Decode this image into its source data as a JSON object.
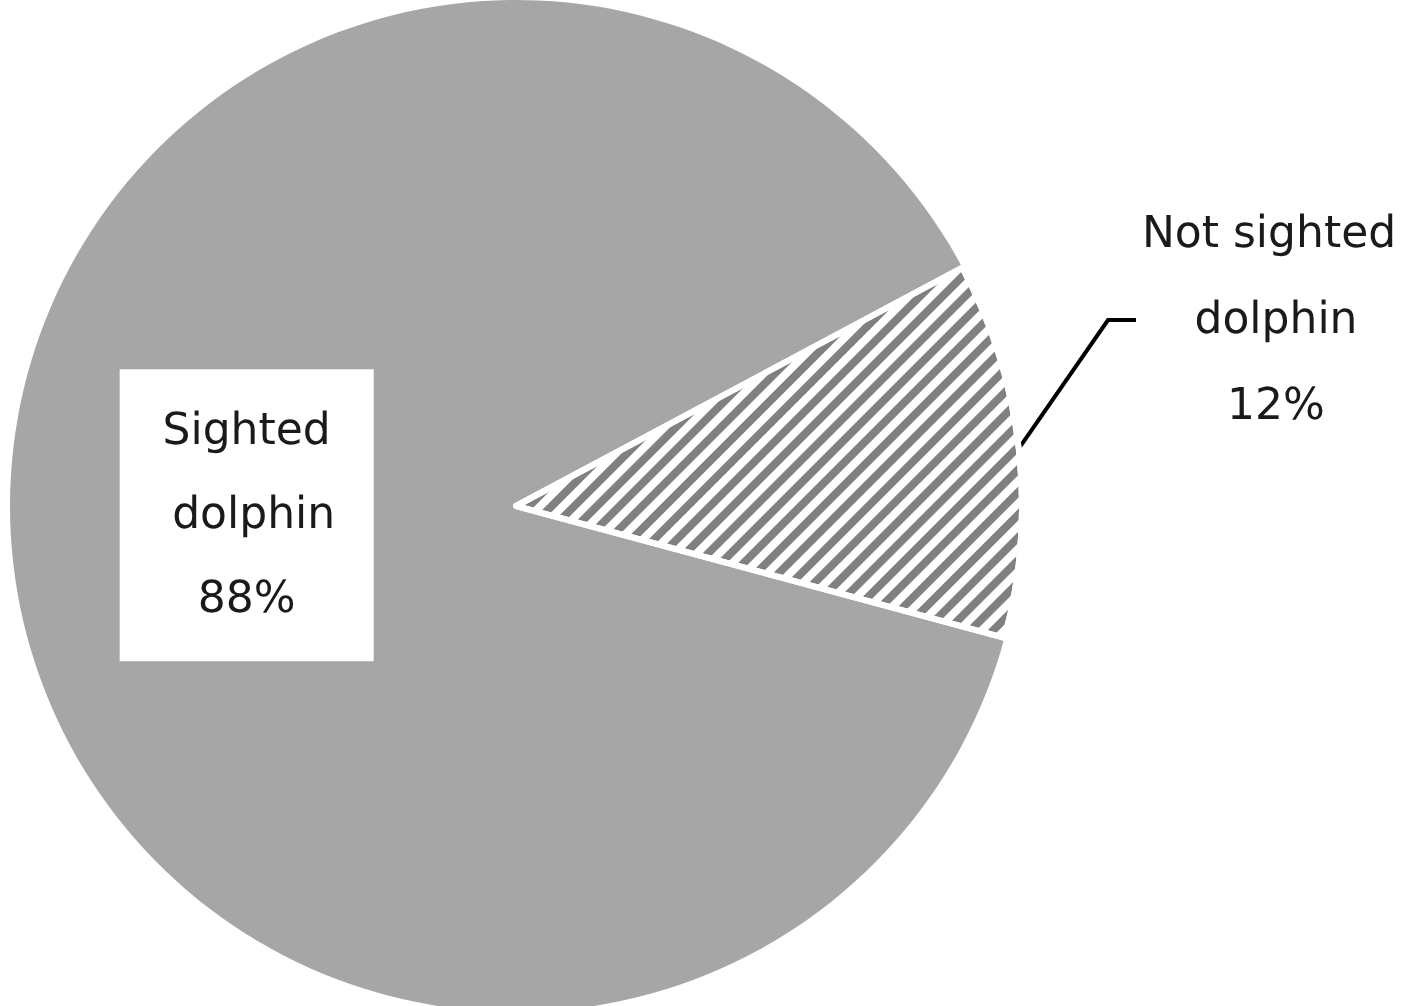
{
  "chart_data": {
    "type": "pie",
    "categories": [
      "Sighted dolphin",
      "Not sighted dolphin"
    ],
    "values": [
      88,
      12
    ],
    "colors": [
      "#a6a6a6",
      "#808080"
    ],
    "value_labels": [
      "88%",
      "12%"
    ]
  }
}
